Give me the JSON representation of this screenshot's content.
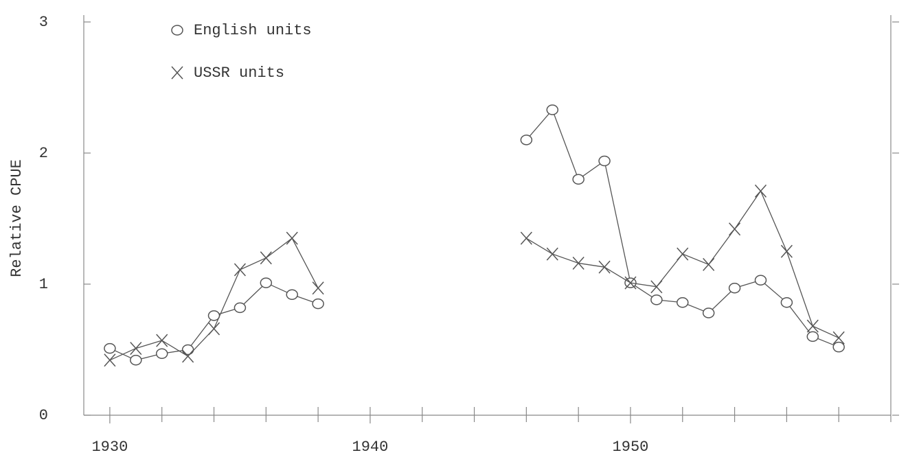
{
  "chart_data": {
    "type": "line",
    "y_label": "Relative CPUE",
    "x": [
      1930,
      1931,
      1932,
      1933,
      1934,
      1935,
      1936,
      1937,
      1938,
      1939,
      1940,
      1941,
      1942,
      1943,
      1944,
      1945,
      1946,
      1947,
      1948,
      1949,
      1950,
      1951,
      1952,
      1953,
      1954,
      1955,
      1956,
      1957,
      1958
    ],
    "series": [
      {
        "name": "English units",
        "color": "#555555",
        "marker": "circle",
        "values": [
          0.51,
          0.42,
          0.47,
          0.5,
          0.76,
          0.82,
          1.01,
          0.92,
          0.85,
          null,
          null,
          null,
          null,
          null,
          null,
          null,
          2.1,
          2.33,
          1.8,
          1.94,
          1.01,
          0.88,
          0.86,
          0.78,
          0.97,
          1.03,
          0.86,
          0.6,
          0.52
        ]
      },
      {
        "name": "USSR units",
        "color": "#555555",
        "marker": "x",
        "values": [
          0.42,
          0.51,
          0.57,
          0.45,
          0.66,
          1.11,
          1.2,
          1.35,
          0.97,
          null,
          null,
          null,
          null,
          null,
          null,
          null,
          1.35,
          1.23,
          1.16,
          1.13,
          1.01,
          0.98,
          1.23,
          1.15,
          1.42,
          1.71,
          1.25,
          0.68,
          0.59
        ]
      }
    ],
    "xlim": [
      1929,
      1960
    ],
    "xticks": [
      1930,
      1940,
      1950
    ],
    "xminorticks": [
      1932,
      1934,
      1936,
      1938,
      1942,
      1944,
      1946,
      1948,
      1952,
      1954,
      1956,
      1958
    ],
    "ylim": [
      0,
      3
    ],
    "yticks": [
      0,
      1,
      2,
      3
    ],
    "grid": false,
    "legend": "upper left"
  }
}
